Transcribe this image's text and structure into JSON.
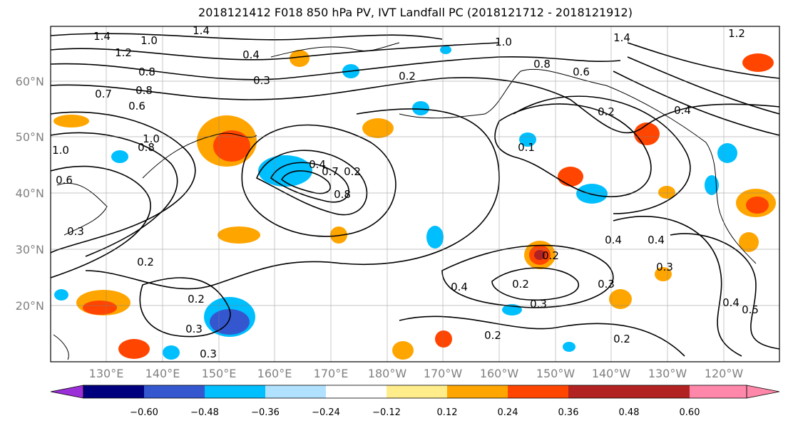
{
  "title": "2018121412 F018 850 hPa PV, IVT Landfall PC (2018121712 - 2018121912)",
  "map": {
    "lat_labels": [
      "60°N",
      "50°N",
      "40°N",
      "30°N",
      "20°N"
    ],
    "lon_labels": [
      "130°E",
      "140°E",
      "150°E",
      "160°E",
      "170°E",
      "180°W",
      "170°W",
      "160°W",
      "150°W",
      "140°W",
      "130°W",
      "120°W"
    ],
    "contour_labels": [
      "1.4",
      "1.2",
      "1.4",
      "1.0",
      "0.8",
      "0.8",
      "0.6",
      "0.7",
      "0.4",
      "0.3",
      "1.0",
      "0.8",
      "1.0",
      "0.6",
      "0.3",
      "0.2",
      "0.2",
      "0.3",
      "0.3",
      "0.2",
      "0.4",
      "0.7",
      "0.8",
      "0.2",
      "0.2",
      "0.4",
      "0.2",
      "0.3",
      "0.4",
      "0.4",
      "0.3",
      "0.3",
      "0.4",
      "0.5",
      "0.2",
      "0.2",
      "0.8",
      "0.6",
      "0.4",
      "0.1",
      "0.2",
      "1.4",
      "1.2",
      "1.0"
    ]
  },
  "colorbar": {
    "ticks": [
      "−0.60",
      "−0.48",
      "−0.36",
      "−0.24",
      "−0.12",
      "0.12",
      "0.24",
      "0.36",
      "0.48",
      "0.60"
    ],
    "colors": [
      "#9b30d8",
      "#00007f",
      "#3457d0",
      "#00bfff",
      "#b0e2ff",
      "#ffffff",
      "#ffec8b",
      "#ffa500",
      "#ff4500",
      "#b22222",
      "#ff88aa"
    ]
  },
  "colors": {
    "contour": "#000000",
    "grid": "#808080"
  }
}
